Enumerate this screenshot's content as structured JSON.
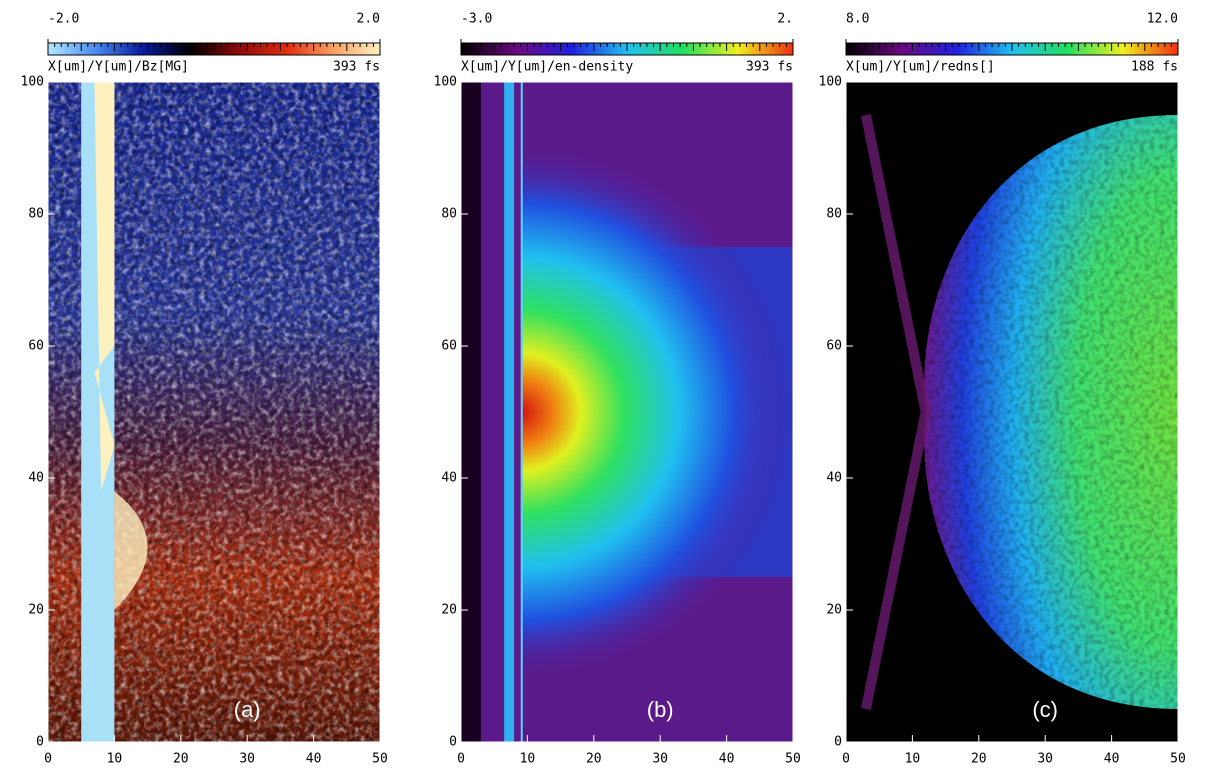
{
  "chart_data": [
    {
      "type": "heatmap",
      "colorbar_ticks": [
        {
          "value": -2,
          "label": "-2.0"
        },
        {
          "value": 2,
          "label": "2.0"
        }
      ],
      "colorbar_colors": [
        "#b0e8ff",
        "#4a8cf0",
        "#0a1aa0",
        "#000000",
        "#8a0a0a",
        "#e02a10",
        "#f8a060",
        "#fff0c0"
      ],
      "quantity": "X[um]/Y[um]/Bz[MG]",
      "time": "393 fs",
      "panel_label": "(a)",
      "xlim": [
        0,
        50
      ],
      "xticks": [
        0,
        10,
        20,
        30,
        40,
        50
      ],
      "ylim": [
        0,
        100
      ],
      "yticks": [
        0,
        20,
        40,
        60,
        80,
        100
      ]
    },
    {
      "type": "heatmap",
      "colorbar_ticks": [
        {
          "value": -3,
          "label": "-3.0"
        },
        {
          "value": 2,
          "label": "2."
        }
      ],
      "colorbar_colors": [
        "#000000",
        "#6a0a80",
        "#2020e0",
        "#20c0f0",
        "#20e060",
        "#f0f020",
        "#f03010"
      ],
      "quantity": "X[um]/Y[um]/en-density",
      "time": "393 fs",
      "panel_label": "(b)",
      "xlim": [
        0,
        50
      ],
      "xticks": [
        0,
        10,
        20,
        30,
        40,
        50
      ],
      "ylim": [
        0,
        100
      ],
      "yticks": [
        0,
        20,
        40,
        60,
        80,
        100
      ]
    },
    {
      "type": "heatmap",
      "colorbar_ticks": [
        {
          "value": 8,
          "label": "8.0"
        },
        {
          "value": 12,
          "label": "12.0"
        }
      ],
      "colorbar_colors": [
        "#000000",
        "#6a0a80",
        "#2020e0",
        "#20c0f0",
        "#20e060",
        "#f0f020",
        "#f03010"
      ],
      "quantity": "X[um]/Y[um]/redns[]",
      "time": "188 fs",
      "panel_label": "(c)",
      "xlim": [
        0,
        50
      ],
      "xticks": [
        0,
        10,
        20,
        30,
        40,
        50
      ],
      "ylim": [
        0,
        100
      ],
      "yticks": [
        0,
        20,
        40,
        60,
        80,
        100
      ]
    }
  ]
}
